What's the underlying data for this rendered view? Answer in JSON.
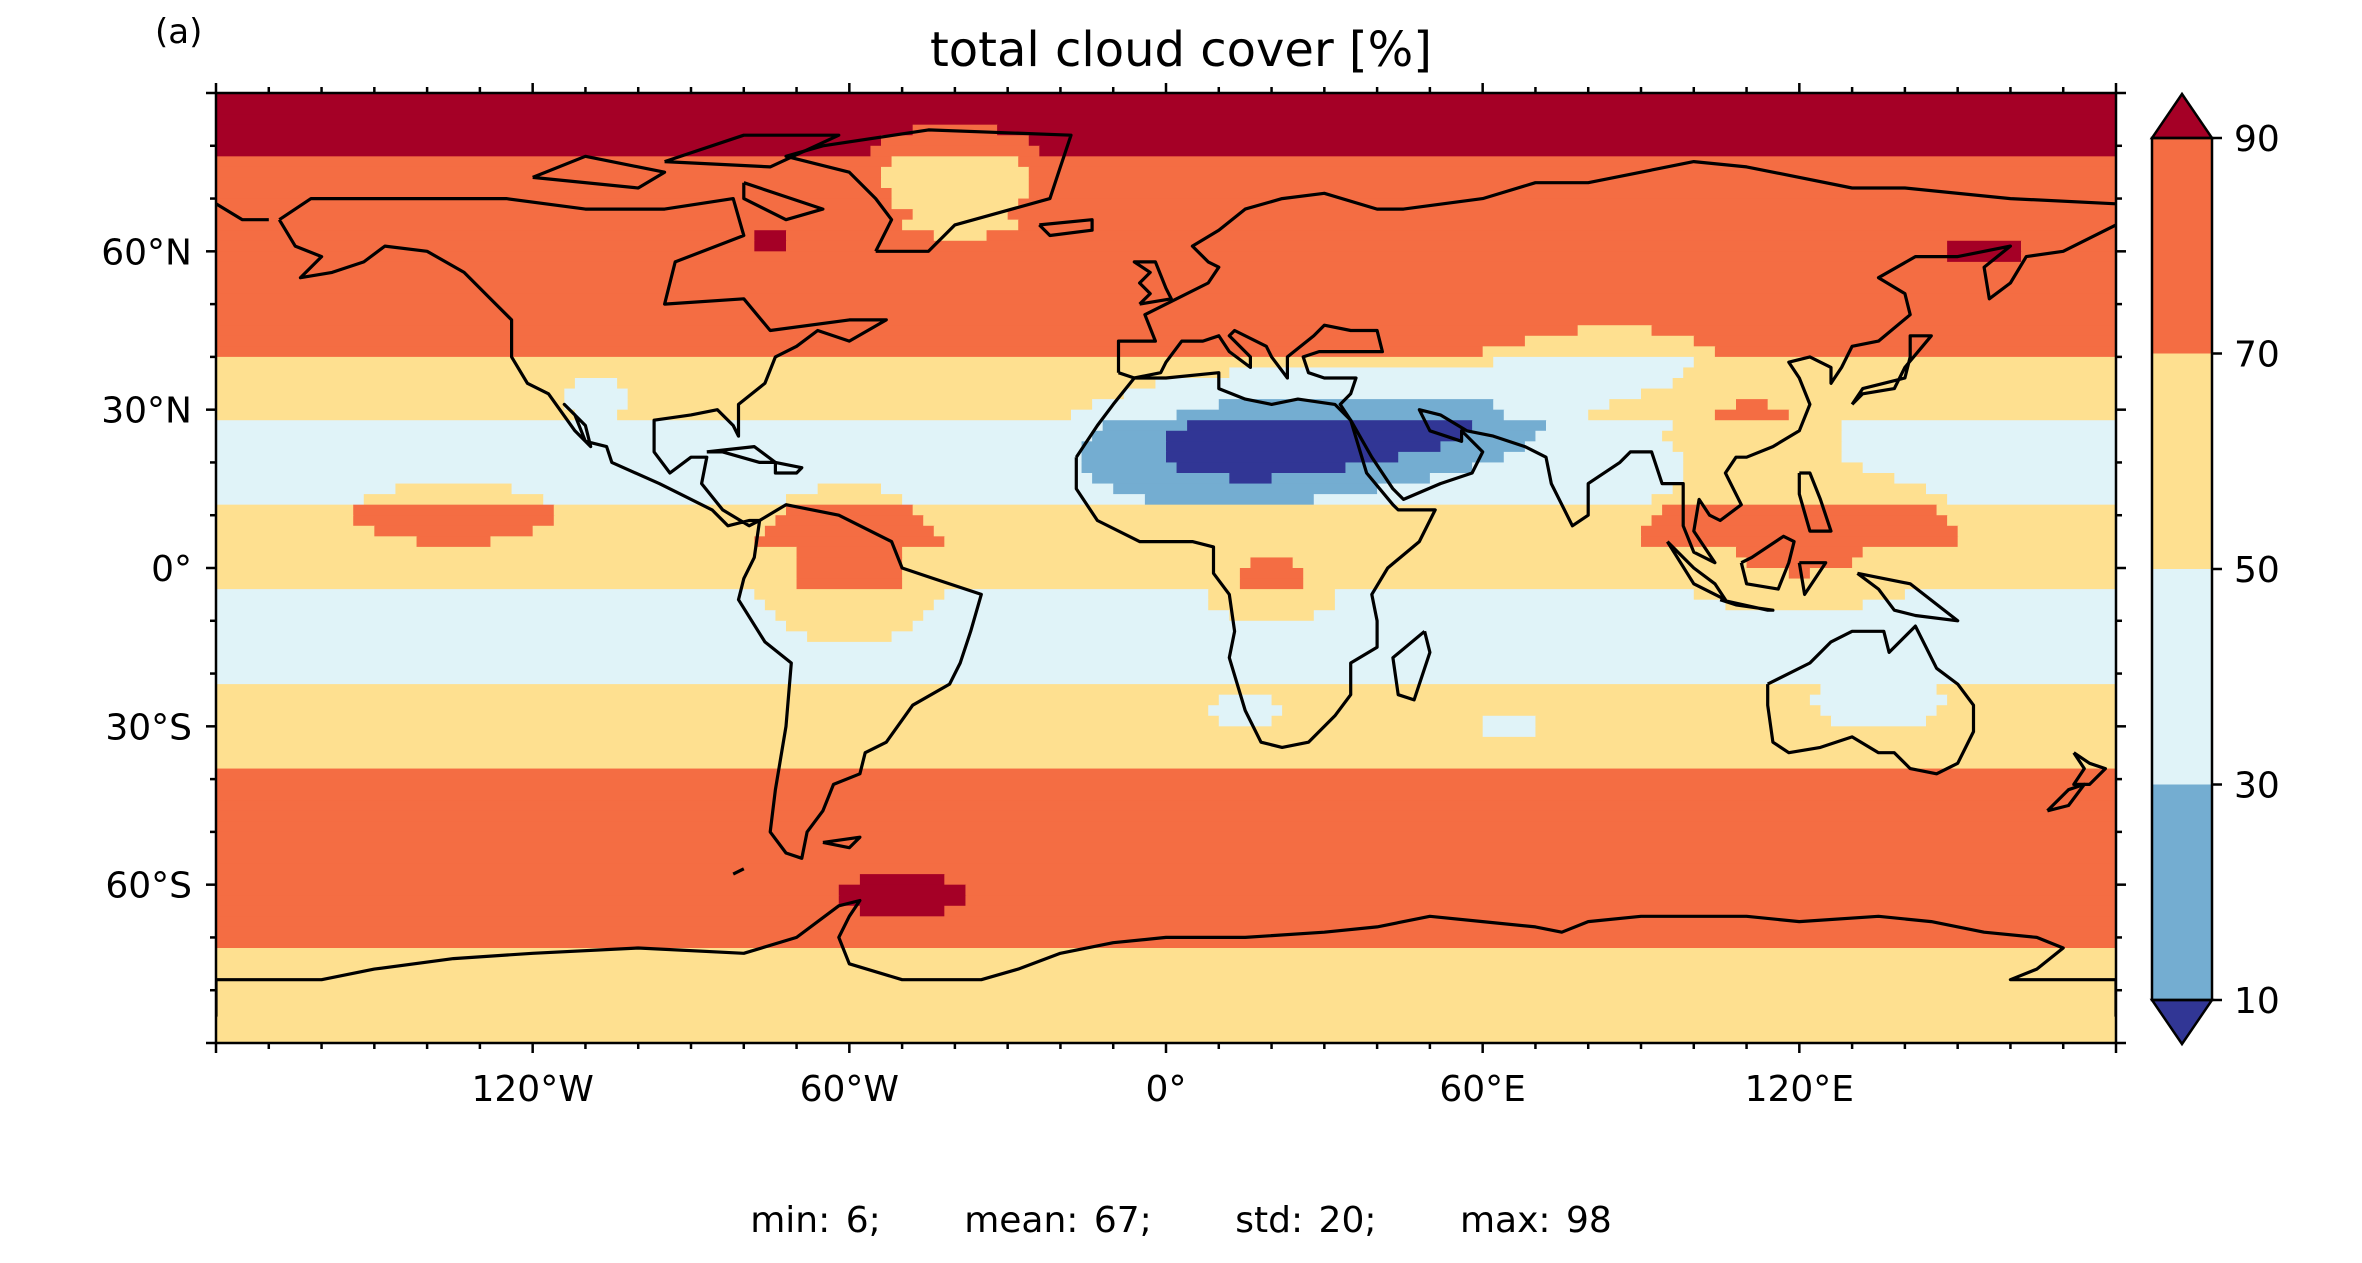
{
  "panel_label": "(a)",
  "title": "total cloud cover [%]",
  "map": {
    "projection": "equirectangular",
    "lon_range": [
      -180,
      180
    ],
    "lat_range": [
      -90,
      90
    ],
    "lon_tick_labels": [
      {
        "value": -120,
        "label": "120°W"
      },
      {
        "value": -60,
        "label": "60°W"
      },
      {
        "value": 0,
        "label": "0°"
      },
      {
        "value": 60,
        "label": "60°E"
      },
      {
        "value": 120,
        "label": "120°E"
      }
    ],
    "lat_tick_labels": [
      {
        "value": 60,
        "label": "60°N"
      },
      {
        "value": 30,
        "label": "30°N"
      },
      {
        "value": 0,
        "label": "0°"
      },
      {
        "value": -30,
        "label": "30°S"
      },
      {
        "value": -60,
        "label": "60°S"
      }
    ]
  },
  "colorbar": {
    "levels": [
      10,
      30,
      50,
      70,
      90
    ],
    "tick_labels": [
      "10",
      "30",
      "50",
      "70",
      "90"
    ],
    "colors": [
      "#313695",
      "#74add1",
      "#e0f3f8",
      "#fee090",
      "#f46d43",
      "#a50026"
    ],
    "extend": "both"
  },
  "stats": [
    {
      "label": "min",
      "value": "6"
    },
    {
      "label": "mean",
      "value": "67"
    },
    {
      "label": "std",
      "value": "20"
    },
    {
      "label": "max",
      "value": "98"
    }
  ],
  "stats_text": {
    "min": "min: 6;",
    "mean": "mean: 67;",
    "std": "std: 20;",
    "max": "max: 98"
  }
}
